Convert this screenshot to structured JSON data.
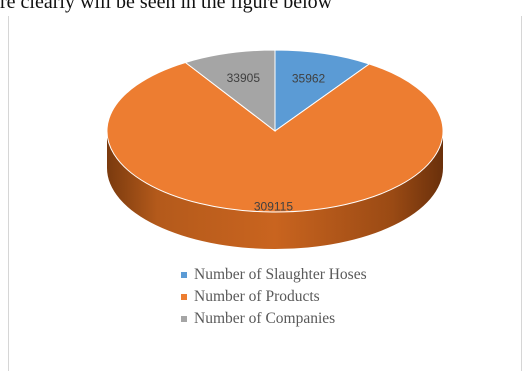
{
  "caption": "re clearly will be seen in the figure below",
  "chart_data": {
    "type": "pie",
    "style": "3d",
    "categories": [
      "Number of Slaughter Hoses",
      "Number of Products",
      "Number of Companies"
    ],
    "values": [
      35962,
      309115,
      33905
    ],
    "colors": [
      "#5B9BD5",
      "#ED7D31",
      "#A5A5A5"
    ],
    "data_labels": [
      "35962",
      "309115",
      "33905"
    ],
    "legend_position": "bottom"
  }
}
